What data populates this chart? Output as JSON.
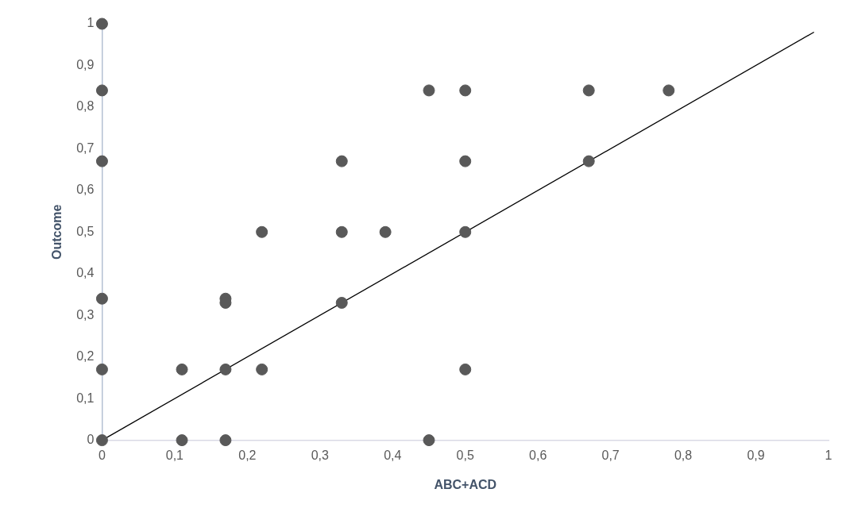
{
  "chart_data": {
    "type": "scatter",
    "xlabel": "ABC+ACD",
    "ylabel": "Outcome",
    "xlim": [
      0,
      1
    ],
    "ylim": [
      0,
      1
    ],
    "xticks": [
      0,
      {
        "value": 0.1,
        "label": "0,1"
      },
      {
        "value": 0.2,
        "label": "0,2"
      },
      {
        "value": 0.3,
        "label": "0,3"
      },
      {
        "value": 0.4,
        "label": "0,4"
      },
      {
        "value": 0.5,
        "label": "0,5"
      },
      {
        "value": 0.6,
        "label": "0,6"
      },
      {
        "value": 0.7,
        "label": "0,7"
      },
      {
        "value": 0.8,
        "label": "0,8"
      },
      {
        "value": 0.9,
        "label": "0,9"
      },
      1
    ],
    "yticks": [
      0,
      {
        "value": 0.1,
        "label": "0,1"
      },
      {
        "value": 0.2,
        "label": "0,2"
      },
      {
        "value": 0.3,
        "label": "0,3"
      },
      {
        "value": 0.4,
        "label": "0,4"
      },
      {
        "value": 0.5,
        "label": "0,5"
      },
      {
        "value": 0.6,
        "label": "0,6"
      },
      {
        "value": 0.7,
        "label": "0,7"
      },
      {
        "value": 0.8,
        "label": "0,8"
      },
      {
        "value": 0.9,
        "label": "0,9"
      },
      1
    ],
    "grid": false,
    "legend": false,
    "marker": "circle",
    "series": [
      {
        "type": "scatter",
        "color": "#595959",
        "x": [
          0,
          0,
          0,
          0,
          0,
          0,
          0.11,
          0.11,
          0.17,
          0.17,
          0.17,
          0.17,
          0.22,
          0.22,
          0.33,
          0.33,
          0.33,
          0.39,
          0.45,
          0.45,
          0.5,
          0.5,
          0.5,
          0.5,
          0.67,
          0.67,
          0.78
        ],
        "values": [
          1,
          0.84,
          0.67,
          0.34,
          0.17,
          0,
          0.17,
          0,
          0.34,
          0.33,
          0.17,
          0,
          0.5,
          0.17,
          0.67,
          0.5,
          0.33,
          0.5,
          0.84,
          0,
          0.84,
          0.67,
          0.5,
          0.17,
          0.84,
          0.67,
          0.84
        ]
      },
      {
        "type": "line",
        "color": "#000000",
        "marker": "none",
        "line_style": "solid",
        "x": [
          0,
          0.98
        ],
        "values": [
          0,
          0.98
        ]
      }
    ]
  }
}
